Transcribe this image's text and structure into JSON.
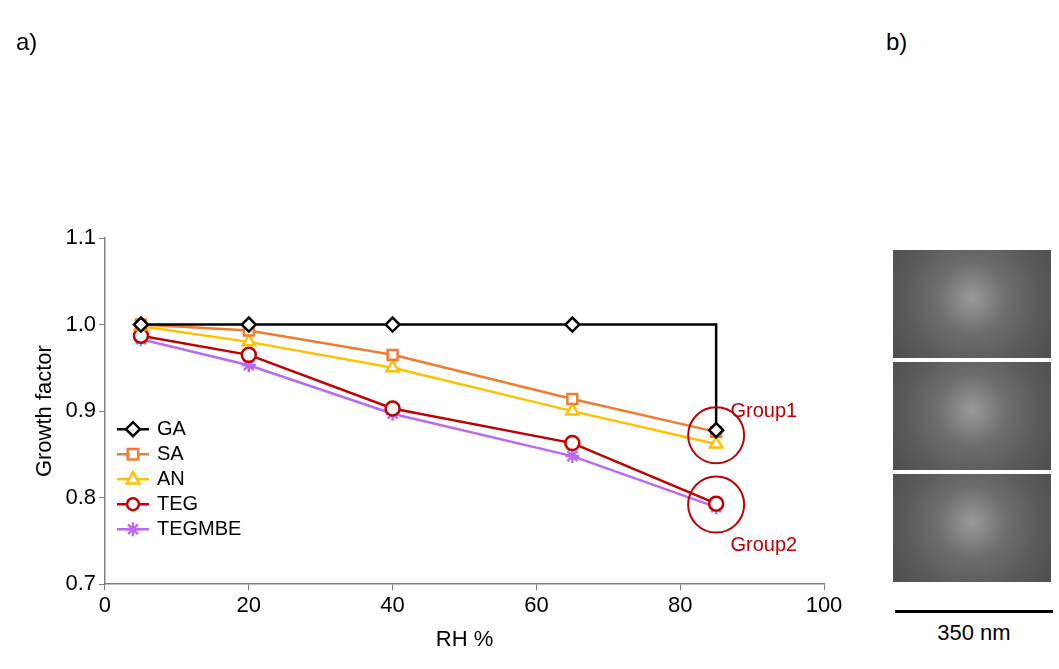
{
  "panel_labels": [
    "a)",
    "b)"
  ],
  "scale_bar_label": "350 nm",
  "chart_data": {
    "type": "line",
    "x_label": "RH %",
    "y_label": "Growth factor",
    "x": [
      5,
      20,
      40,
      65,
      85
    ],
    "series": [
      {
        "name": "GA",
        "color": "#000000",
        "marker": "diamond",
        "line_style": "step",
        "values": [
          1.0,
          1.0,
          1.0,
          1.0,
          0.878
        ]
      },
      {
        "name": "SA",
        "color": "#ED7D31",
        "marker": "square",
        "values": [
          1.0,
          0.993,
          0.965,
          0.914,
          0.876
        ]
      },
      {
        "name": "AN",
        "color": "#FFC000",
        "marker": "triangle",
        "values": [
          0.998,
          0.98,
          0.95,
          0.9,
          0.862
        ]
      },
      {
        "name": "TEG",
        "color": "#C00000",
        "marker": "circle",
        "values": [
          0.987,
          0.965,
          0.903,
          0.863,
          0.793
        ]
      },
      {
        "name": "TEGMBE",
        "color": "#B86BF0",
        "marker": "asterisk",
        "values": [
          0.983,
          0.953,
          0.897,
          0.848,
          0.789
        ]
      }
    ],
    "xlim": [
      0,
      100
    ],
    "xticks": [
      0,
      20,
      40,
      60,
      80,
      100
    ],
    "ylim": [
      0.7,
      1.1
    ],
    "yticks": [
      0.7,
      0.8,
      0.9,
      {
        "value": 1,
        "label": "1.0"
      },
      1.1
    ],
    "grid": false,
    "legend": "lower left",
    "annotations": [
      {
        "text": "Group1",
        "x": 85,
        "y": 0.872,
        "label_x": 87,
        "label_y": 0.9
      },
      {
        "text": "Group2",
        "x": 85,
        "y": 0.792,
        "label_x": 87,
        "label_y": 0.745
      }
    ]
  }
}
